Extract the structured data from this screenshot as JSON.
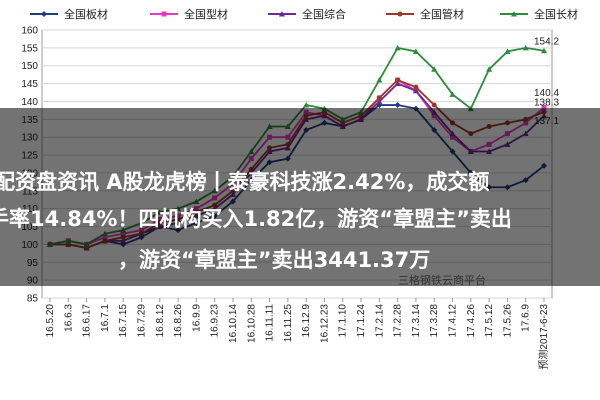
{
  "chart_data": {
    "type": "line",
    "title": "",
    "xlabel": "",
    "ylabel": "",
    "ylim": [
      85,
      160
    ],
    "yticks": [
      85,
      90,
      95,
      100,
      105,
      110,
      115,
      120,
      125,
      130,
      135,
      140,
      145,
      150,
      155,
      160
    ],
    "grid": true,
    "legend": "top",
    "x": [
      "16.5.20",
      "16.6.3",
      "16.6.17",
      "16.7.1",
      "16.7.15",
      "16.7.29",
      "16.8.12",
      "16.8.26",
      "16.9.9",
      "16.9.23",
      "16.10.14",
      "16.10.28",
      "16.11.11",
      "16.11.25",
      "16.12.9",
      "16.12.23",
      "17.1.10",
      "17.1.24",
      "17.2.14",
      "17.2.28",
      "17.3.14",
      "17.3.28",
      "17.4.12",
      "17.4.26",
      "17.5.12",
      "17.5.26",
      "17.6.9",
      "预测2017-6-23"
    ],
    "series": [
      {
        "name": "全国板材",
        "color": "#1f3f7a",
        "marker": "diamond",
        "values": [
          100,
          100,
          99,
          101,
          100,
          102,
          105,
          104,
          106,
          108,
          112,
          118,
          123,
          124,
          132,
          134,
          133,
          135,
          139,
          139,
          138,
          132,
          126,
          120,
          116,
          116,
          118,
          122
        ]
      },
      {
        "name": "全国型材",
        "color": "#e838c8",
        "marker": "square",
        "values": [
          100,
          101,
          100,
          102,
          103,
          104,
          107,
          108,
          110,
          113,
          117,
          124,
          130,
          130,
          137,
          136,
          133,
          135,
          141,
          146,
          143,
          136,
          130,
          126,
          128,
          131,
          134,
          138.3
        ]
      },
      {
        "name": "全国综合",
        "color": "#6a2c8e",
        "marker": "triangle",
        "values": [
          100,
          100,
          99,
          101,
          101,
          103,
          105,
          106,
          108,
          110,
          114,
          120,
          126,
          127,
          135,
          136,
          133,
          135,
          140,
          145,
          143,
          137,
          131,
          126,
          126,
          128,
          131,
          136
        ]
      },
      {
        "name": "全国管材",
        "color": "#9a3a26",
        "marker": "circle",
        "values": [
          100,
          100,
          99,
          101,
          102,
          103,
          106,
          107,
          109,
          111,
          115,
          121,
          127,
          128,
          136,
          137,
          134,
          136,
          141,
          146,
          144,
          139,
          134,
          131,
          133,
          134,
          135,
          137.1
        ]
      },
      {
        "name": "全国长材",
        "color": "#2e8b3a",
        "marker": "triangle",
        "values": [
          100,
          101,
          100,
          103,
          104,
          106,
          109,
          110,
          112,
          115,
          119,
          126,
          133,
          133,
          139,
          138,
          135,
          137,
          146,
          155,
          154,
          149,
          142,
          138,
          149,
          154,
          155,
          154.2
        ]
      }
    ],
    "end_labels": [
      "154.2",
      "140.4",
      "138.3",
      "137.1"
    ]
  },
  "headline": {
    "line1": "配资盘资讯 A股龙虎榜丨泰豪科技涨2.42%，成交额",
    "line2": "手率14.84%！四机构买入1.82亿，游资“章盟主”卖出",
    "line3": "，游资“章盟主”卖出3441.37万"
  },
  "watermark": "三格钢铁云商平台"
}
